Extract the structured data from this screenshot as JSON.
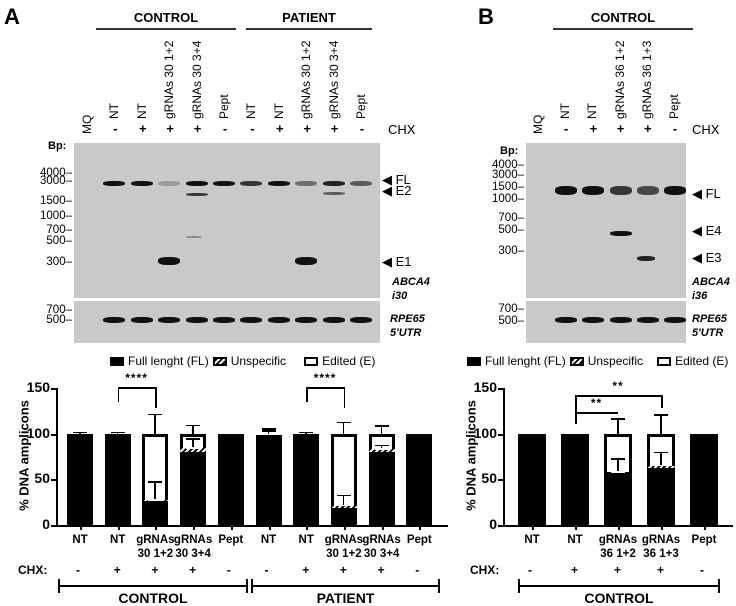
{
  "panelA": {
    "letter": "A",
    "groups": [
      "CONTROL",
      "PATIENT"
    ],
    "lanes": [
      "MQ",
      "NT",
      "NT",
      "gRNAs 30 1+2",
      "gRNAs 30 3+4",
      "Pept",
      "NT",
      "NT",
      "gRNAs 30 1+2",
      "gRNAs 30 3+4",
      "Pept"
    ],
    "chx_signs": [
      "",
      "-",
      "+",
      "+",
      "+",
      "-",
      "-",
      "+",
      "+",
      "+",
      "-"
    ],
    "chx_label": "CHX",
    "bp_label": "Bp:",
    "ladder_top": [
      "4000",
      "3000",
      "1500",
      "1000",
      "700",
      "500",
      "300"
    ],
    "ladder_bottom": [
      "700",
      "500"
    ],
    "band_labels": [
      "FL",
      "E2",
      "E1"
    ],
    "gene_top": [
      "ABCA4",
      "i30"
    ],
    "gene_bottom": [
      "RPE65",
      "5'UTR"
    ]
  },
  "panelB": {
    "letter": "B",
    "groups": [
      "CONTROL"
    ],
    "lanes": [
      "MQ",
      "NT",
      "NT",
      "gRNAs 36 1+2",
      "gRNAs 36 1+3",
      "Pept"
    ],
    "chx_signs": [
      "",
      "-",
      "+",
      "+",
      "+",
      "-"
    ],
    "chx_label": "CHX",
    "bp_label": "Bp:",
    "ladder_top": [
      "4000",
      "3000",
      "1500",
      "1000",
      "700",
      "500",
      "300"
    ],
    "ladder_bottom": [
      "700",
      "500"
    ],
    "band_labels": [
      "FL",
      "E4",
      "E3"
    ],
    "gene_top": [
      "ABCA4",
      "i36"
    ],
    "gene_bottom": [
      "RPE65",
      "5'UTR"
    ]
  },
  "legend": {
    "full_length": "Full lenght (FL)",
    "unspecific": "Unspecific",
    "edited": "Edited (E)"
  },
  "chart_data": [
    {
      "type": "bar",
      "stacked": true,
      "title": "",
      "ylabel": "% DNA amplicons",
      "xlabel": "",
      "ylim": [
        0,
        150
      ],
      "yticks": [
        "0",
        "50",
        "100",
        "150"
      ],
      "categories": [
        "NT",
        "NT",
        "gRNAs 30 1+2",
        "gRNAs 30 3+4",
        "Pept",
        "NT",
        "NT",
        "gRNAs 30 1+2",
        "gRNAs 30 3+4",
        "Pept"
      ],
      "chx": [
        "-",
        "+",
        "+",
        "+",
        "-",
        "-",
        "+",
        "+",
        "+",
        "-"
      ],
      "groups": [
        {
          "name": "CONTROL",
          "span": [
            0,
            4
          ]
        },
        {
          "name": "PATIENT",
          "span": [
            5,
            9
          ]
        }
      ],
      "series": [
        {
          "name": "Full lenght (FL)",
          "values": [
            100,
            100,
            26,
            80,
            100,
            98,
            100,
            19,
            80,
            100
          ]
        },
        {
          "name": "Unspecific",
          "values": [
            0,
            0,
            1,
            4,
            0,
            1,
            0,
            2,
            3,
            0
          ]
        },
        {
          "name": "Edited (E)",
          "values": [
            0,
            0,
            73,
            16,
            0,
            1,
            0,
            79,
            17,
            0
          ]
        }
      ],
      "error_bars": {
        "total_top": [
          102,
          102,
          122,
          110,
          100,
          106,
          102,
          113,
          109,
          100
        ],
        "fl_top": [
          null,
          null,
          48,
          95,
          null,
          104,
          null,
          33,
          88,
          null
        ]
      },
      "annotations": [
        {
          "text": "****",
          "from": 1,
          "to": 2
        },
        {
          "text": "****",
          "from": 6,
          "to": 7
        }
      ],
      "chx_label": "CHX:"
    },
    {
      "type": "bar",
      "stacked": true,
      "title": "",
      "ylabel": "% DNA amplicons",
      "xlabel": "",
      "ylim": [
        0,
        150
      ],
      "yticks": [
        "0",
        "50",
        "100",
        "150"
      ],
      "categories": [
        "NT",
        "NT",
        "gRNAs 36 1+2",
        "gRNAs 36 1+3",
        "Pept"
      ],
      "chx": [
        "-",
        "+",
        "+",
        "+",
        "-"
      ],
      "groups": [
        {
          "name": "CONTROL",
          "span": [
            0,
            4
          ]
        }
      ],
      "series": [
        {
          "name": "Full lenght (FL)",
          "values": [
            100,
            100,
            58,
            62,
            100
          ]
        },
        {
          "name": "Unspecific",
          "values": [
            0,
            0,
            0,
            3,
            0
          ]
        },
        {
          "name": "Edited (E)",
          "values": [
            0,
            0,
            42,
            35,
            0
          ]
        }
      ],
      "error_bars": {
        "total_top": [
          100,
          100,
          117,
          121,
          100
        ],
        "fl_top": [
          null,
          null,
          73,
          80,
          null
        ]
      },
      "annotations": [
        {
          "text": "**",
          "from": 1,
          "to": 2
        },
        {
          "text": "**",
          "from": 1,
          "to": 3
        }
      ],
      "chx_label": "CHX:"
    }
  ],
  "chartA": {
    "ylabel": "% DNA amplicons",
    "yticks": [
      "150",
      "100",
      "50",
      "0"
    ],
    "xlabels": [
      "NT",
      "NT",
      "gRNAs\n30 1+2",
      "gRNAs\n30 3+4",
      "Pept",
      "NT",
      "NT",
      "gRNAs\n30 1+2",
      "gRNAs\n30 3+4",
      "Pept"
    ],
    "chx_label": "CHX:",
    "chx": [
      "-",
      "+",
      "+",
      "+",
      "-",
      "-",
      "+",
      "+",
      "+",
      "-"
    ],
    "groups": [
      "CONTROL",
      "PATIENT"
    ],
    "sig": [
      "****",
      "****"
    ]
  },
  "chartB": {
    "ylabel": "% DNA amplicons",
    "yticks": [
      "150",
      "100",
      "50",
      "0"
    ],
    "xlabels": [
      "NT",
      "NT",
      "gRNAs\n36 1+2",
      "gRNAs\n36 1+3",
      "Pept"
    ],
    "chx_label": "CHX:",
    "chx": [
      "-",
      "+",
      "+",
      "+",
      "-"
    ],
    "groups": [
      "CONTROL"
    ],
    "sig": [
      "**",
      "**"
    ]
  }
}
